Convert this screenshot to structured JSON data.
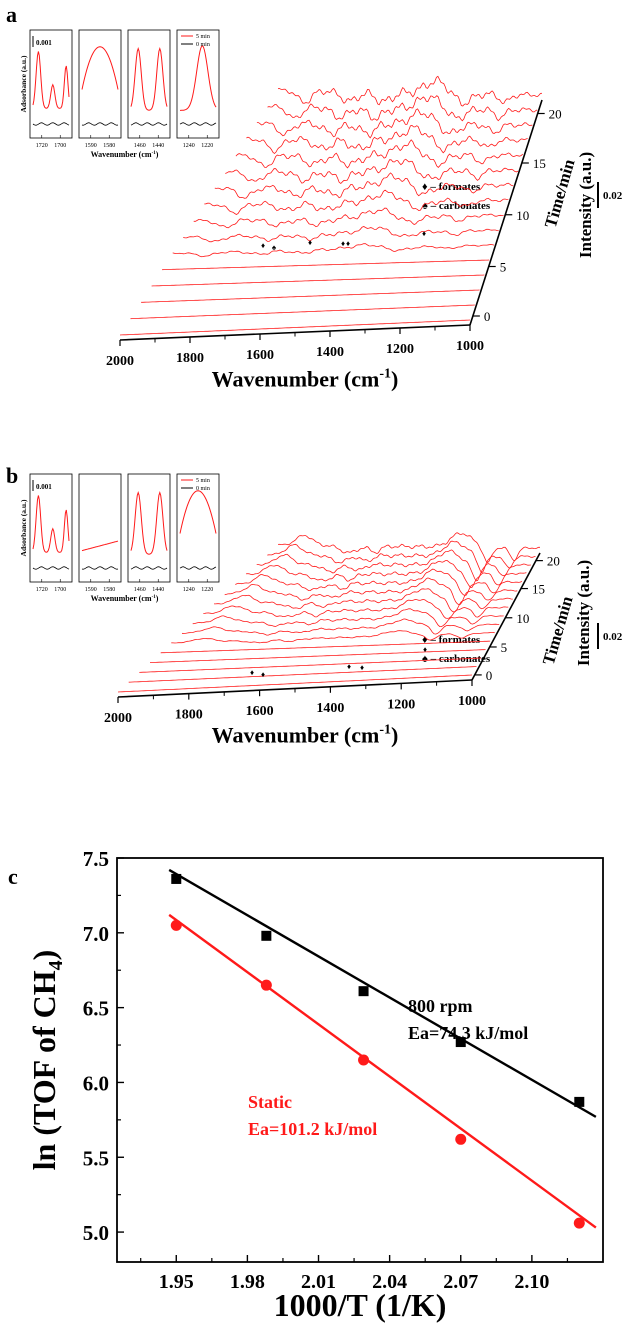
{
  "colors": {
    "red": "#ff1a1a",
    "black": "#000000"
  },
  "waterfall_panels": [
    {
      "panel_label": "a",
      "x_axis": {
        "label": "Wavenumber (cm",
        "label_sup": "-1",
        "label_close": ")",
        "ticks": [
          "2000",
          "1800",
          "1600",
          "1400",
          "1200",
          "1000"
        ]
      },
      "time_axis": {
        "label": "Time/min",
        "ticks": [
          "0",
          "5",
          "10",
          "15",
          "20"
        ]
      },
      "intensity": {
        "label": "Intensity (a.u.)",
        "scale": "0.02"
      },
      "legend": {
        "formates": "♦ – formates",
        "carbonates": "♠ – carbonates"
      },
      "inset": {
        "ylabel": "Adsorbance (a.u.)",
        "scale": "0.001",
        "legend": [
          "5 min",
          "0 min"
        ],
        "xlabel": "Wavenumber (cm",
        "xlabel_sup": "-1",
        "xlabel_close": ")",
        "boxes": [
          {
            "ticks": [
              "1720",
              "1700"
            ],
            "shape": "triple"
          },
          {
            "ticks": [
              "1590",
              "1580"
            ],
            "shape": "dome"
          },
          {
            "ticks": [
              "1460",
              "1440"
            ],
            "shape": "double"
          },
          {
            "ticks": [
              "1240",
              "1220"
            ],
            "shape": "peak"
          }
        ]
      },
      "markers": [
        "♦",
        "♠",
        "♦",
        "♦",
        "♦",
        "♦"
      ]
    },
    {
      "panel_label": "b",
      "x_axis": {
        "label": "Wavenumber (cm",
        "label_sup": "-1",
        "label_close": ")",
        "ticks": [
          "2000",
          "1800",
          "1600",
          "1400",
          "1200",
          "1000"
        ]
      },
      "time_axis": {
        "label": "Time/min",
        "ticks": [
          "0",
          "5",
          "10",
          "15",
          "20"
        ]
      },
      "intensity": {
        "label": "Intensity (a.u.)",
        "scale": "0.02"
      },
      "legend": {
        "formates": "♦ – formates",
        "carbonates": "♠ – carbonates"
      },
      "inset": {
        "ylabel": "Adsorbance (a.u.)",
        "scale": "0.001",
        "legend": [
          "5 min",
          "0 min"
        ],
        "xlabel": "Wavenumber (cm",
        "xlabel_sup": "-1",
        "xlabel_close": ")",
        "boxes": [
          {
            "ticks": [
              "1720",
              "1700"
            ],
            "shape": "triple"
          },
          {
            "ticks": [
              "1590",
              "1580"
            ],
            "shape": "flat"
          },
          {
            "ticks": [
              "1460",
              "1440"
            ],
            "shape": "double"
          },
          {
            "ticks": [
              "1240",
              "1220"
            ],
            "shape": "dome"
          }
        ]
      },
      "markers": [
        "♦",
        "♦",
        "♦",
        "♦",
        "♦"
      ]
    }
  ],
  "chart_data": {
    "type": "scatter",
    "panel_label": "c",
    "xlabel": "1000/T (1/K)",
    "ylabel": "ln (TOF of CH",
    "ylabel_sub": "4",
    "ylabel_close": ")",
    "xlim": [
      1.925,
      2.13
    ],
    "ylim": [
      4.8,
      7.5
    ],
    "x_ticks": [
      "1.95",
      "1.98",
      "2.01",
      "2.04",
      "2.07",
      "2.10"
    ],
    "y_ticks": [
      "5.0",
      "5.5",
      "6.0",
      "6.5",
      "7.0",
      "7.5"
    ],
    "series": [
      {
        "color": "#000000",
        "marker": "square",
        "x": [
          1.95,
          1.988,
          2.029,
          2.07,
          2.12
        ],
        "y": [
          7.36,
          6.98,
          6.61,
          6.27,
          5.87
        ],
        "fit": {
          "x": [
            1.947,
            2.127
          ],
          "y": [
            7.42,
            5.77
          ]
        },
        "annotation": [
          "800 rpm",
          "Ea=74.3 kJ/mol"
        ]
      },
      {
        "color": "#ff1a1a",
        "marker": "circle",
        "x": [
          1.95,
          1.988,
          2.029,
          2.07,
          2.12
        ],
        "y": [
          7.05,
          6.65,
          6.15,
          5.62,
          5.06
        ],
        "fit": {
          "x": [
            1.947,
            2.127
          ],
          "y": [
            7.12,
            5.03
          ]
        },
        "annotation": [
          "Static",
          "Ea=101.2 kJ/mol"
        ]
      }
    ]
  }
}
